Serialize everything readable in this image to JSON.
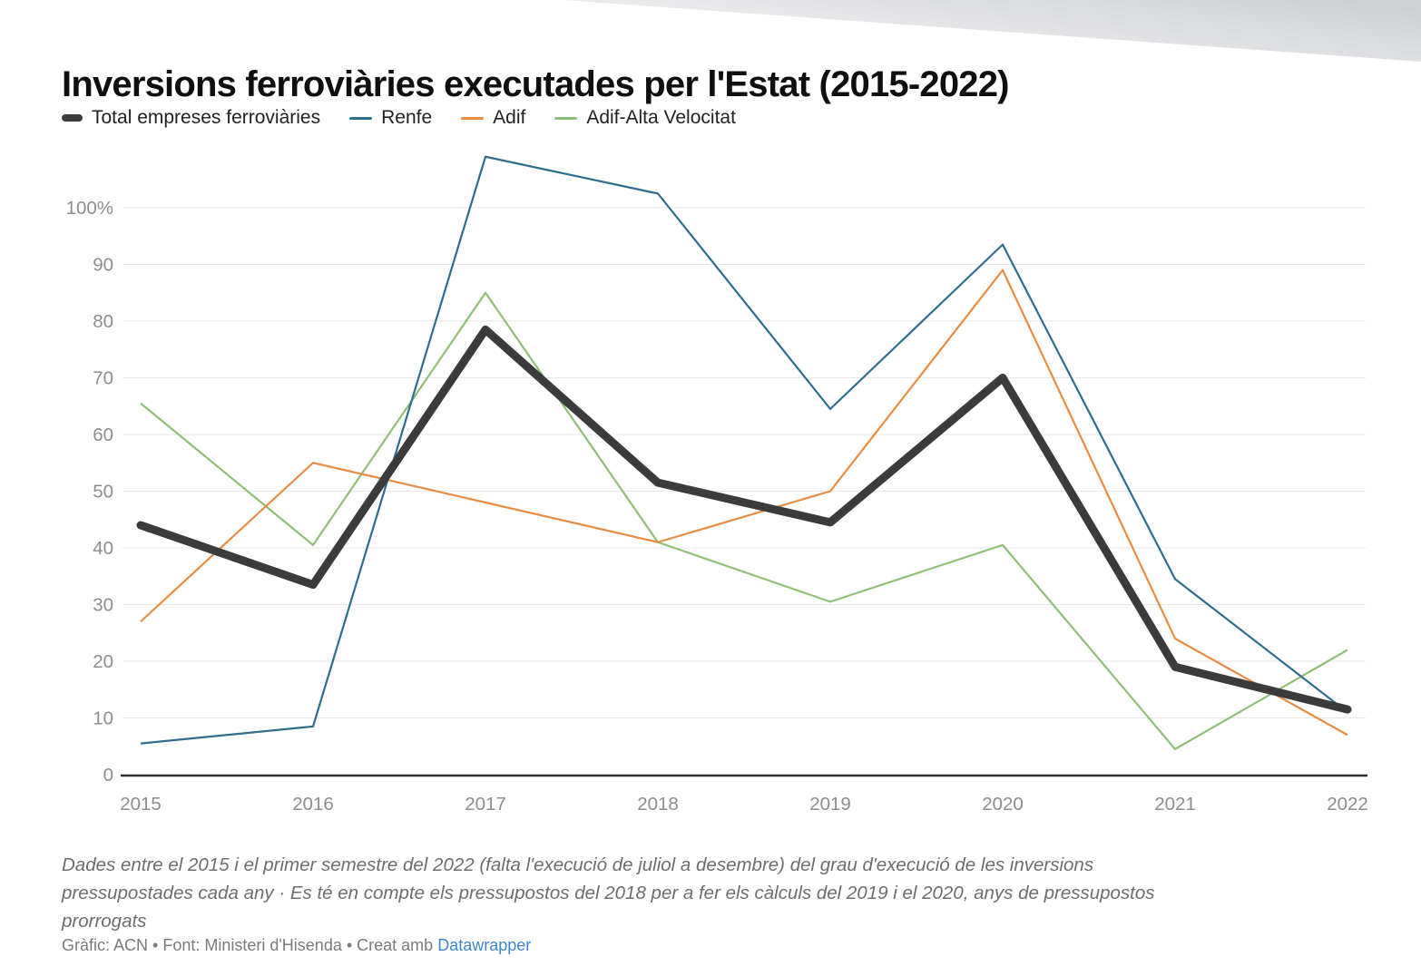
{
  "header": {
    "title": "Inversions ferroviàries executades per l'Estat (2015-2022)"
  },
  "chart_data": {
    "type": "line",
    "x": [
      2015,
      2016,
      2017,
      2018,
      2019,
      2020,
      2021,
      2022
    ],
    "series": [
      {
        "name": "Total empreses ferroviàries",
        "color": "#3b3b3b",
        "emphasis": "thick",
        "values": [
          44,
          33.5,
          78.5,
          51.5,
          44.5,
          70,
          19,
          11.5
        ]
      },
      {
        "name": "Renfe",
        "color": "#2e6d8e",
        "emphasis": "thin",
        "values": [
          5.5,
          8.5,
          109,
          102.5,
          64.5,
          93.5,
          34.5,
          11
        ]
      },
      {
        "name": "Adif",
        "color": "#e78c40",
        "emphasis": "thin",
        "values": [
          27,
          55,
          48,
          41,
          50,
          89,
          24,
          7
        ]
      },
      {
        "name": "Adif-Alta Velocitat",
        "color": "#8fbf77",
        "emphasis": "thin",
        "values": [
          65.5,
          40.5,
          85,
          41,
          30.5,
          40.5,
          4.5,
          22
        ]
      }
    ],
    "yticks": [
      {
        "value": 0,
        "label": "0"
      },
      {
        "value": 10,
        "label": "10"
      },
      {
        "value": 20,
        "label": "20"
      },
      {
        "value": 30,
        "label": "30"
      },
      {
        "value": 40,
        "label": "40"
      },
      {
        "value": 50,
        "label": "50"
      },
      {
        "value": 60,
        "label": "60"
      },
      {
        "value": 70,
        "label": "70"
      },
      {
        "value": 80,
        "label": "80"
      },
      {
        "value": 90,
        "label": "90"
      },
      {
        "value": 100,
        "label": "100%"
      }
    ],
    "ylim": [
      0,
      110
    ],
    "unit": "%",
    "grid": true,
    "legend_position": "top"
  },
  "footer": {
    "note_lines": [
      "Dades entre el 2015 i el primer semestre del 2022 (falta l'execució de juliol a desembre) del grau d'execució de les inversions",
      "pressupostades cada any · Es té en compte els pressupostos del 2018 per a fer els càlculs del 2019 i el 2020, anys de pressupostos",
      "prorrogats"
    ],
    "credits_prefix": "Gràfic: ACN • Font: Ministeri d'Hisenda • Creat amb",
    "credits_link": "Datawrapper"
  },
  "colors": {
    "grid": "#e7e7e7",
    "axis": "#2f2f2f",
    "tick_text": "#8d8d8d",
    "link": "#3d87c9"
  }
}
